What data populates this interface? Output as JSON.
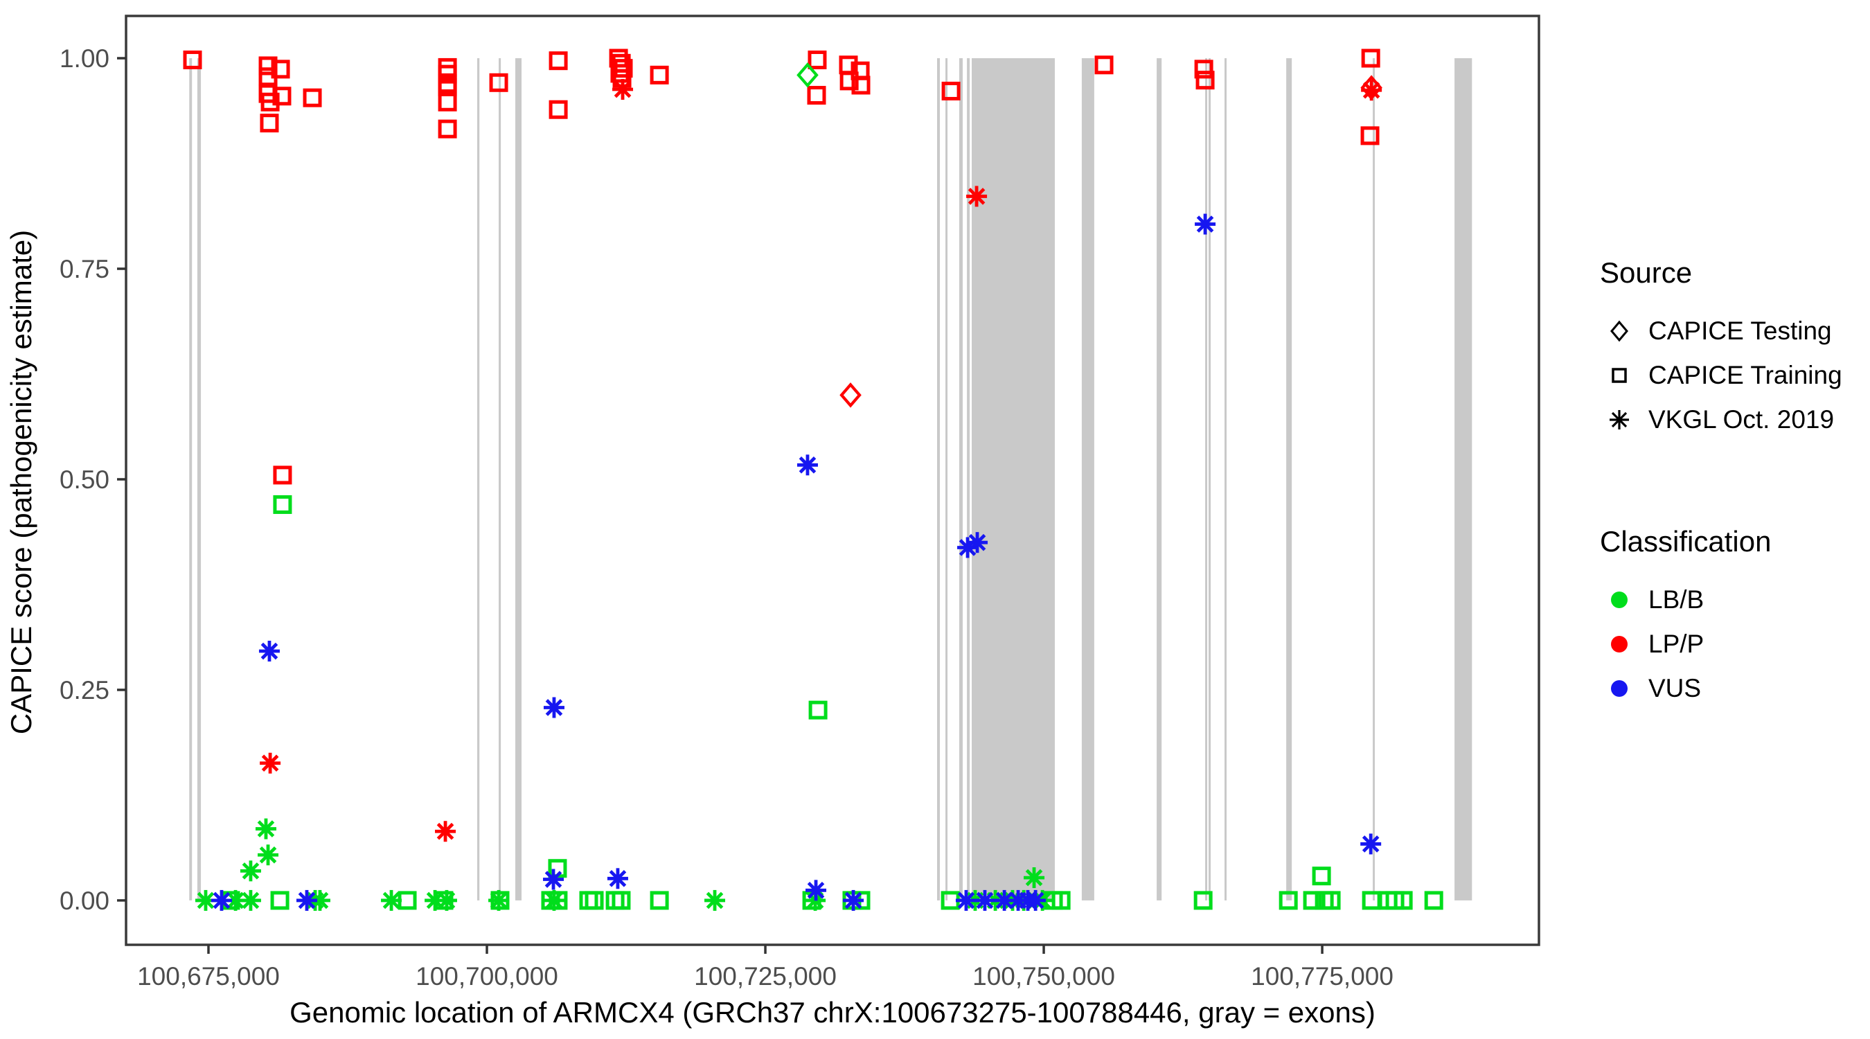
{
  "colors": {
    "LB/B": "#00DD1C",
    "LP/P": "#FF0000",
    "VUS": "#1717F0",
    "exon": "#C9C9C9",
    "axis_text": "#4D4D4D",
    "border": "#3A3A3A"
  },
  "legend": {
    "source": {
      "title": "Source",
      "items": [
        {
          "marker": "diamond",
          "label": "CAPICE Testing"
        },
        {
          "marker": "square",
          "label": "CAPICE Training"
        },
        {
          "marker": "asterisk",
          "label": "VKGL Oct. 2019"
        }
      ]
    },
    "classification": {
      "title": "Classification",
      "items": [
        {
          "color_key": "LB/B",
          "label": "LB/B"
        },
        {
          "color_key": "LP/P",
          "label": "LP/P"
        },
        {
          "color_key": "VUS",
          "label": "VUS"
        }
      ]
    }
  },
  "chart_data": {
    "type": "scatter",
    "title": "",
    "xlabel": "Genomic location of ARMCX4 (GRCh37 chrX:100673275-100788446, gray = exons)",
    "ylabel": "CAPICE score (pathogenicity estimate)",
    "xlim": [
      100667600,
      100794460
    ],
    "ylim": [
      -0.0527,
      1.0502
    ],
    "grid": false,
    "legend_position": "right",
    "x_ticks": [
      {
        "value": 100675000,
        "label": "100,675,000"
      },
      {
        "value": 100700000,
        "label": "100,700,000"
      },
      {
        "value": 100725000,
        "label": "100,725,000"
      },
      {
        "value": 100750000,
        "label": "100,750,000"
      },
      {
        "value": 100775000,
        "label": "100,775,000"
      }
    ],
    "y_ticks": [
      {
        "value": 1.0,
        "label": "1.00"
      },
      {
        "value": 0.75,
        "label": "0.75"
      },
      {
        "value": 0.5,
        "label": "0.50"
      },
      {
        "value": 0.25,
        "label": "0.25"
      },
      {
        "value": 0.0,
        "label": "0.00"
      }
    ],
    "exons_note": "gray rectangles span CAPICE score 0 to 1",
    "exons": [
      [
        100673275,
        100673520
      ],
      [
        100674000,
        100674320
      ],
      [
        100699130,
        100699330
      ],
      [
        100701060,
        100701250
      ],
      [
        100702550,
        100703110
      ],
      [
        100740420,
        100740670
      ],
      [
        100741170,
        100741310
      ],
      [
        100742410,
        100742720
      ],
      [
        100743100,
        100743350
      ],
      [
        100743530,
        100750990
      ],
      [
        100753410,
        100754530
      ],
      [
        100760140,
        100760580
      ],
      [
        100764490,
        100764630
      ],
      [
        100764800,
        100764940
      ],
      [
        100766230,
        100766370
      ],
      [
        100771770,
        100772270
      ],
      [
        100779540,
        100779680
      ],
      [
        100786880,
        100788446
      ]
    ],
    "series": [
      {
        "source": "CAPICE Training",
        "classification": "LP/P",
        "marker": "square",
        "color_key": "LP/P",
        "points": [
          [
            100673570,
            0.998
          ],
          [
            100680350,
            0.991
          ],
          [
            100681470,
            0.987
          ],
          [
            100680350,
            0.978
          ],
          [
            100680350,
            0.958
          ],
          [
            100681590,
            0.955
          ],
          [
            100684330,
            0.953
          ],
          [
            100680540,
            0.948
          ],
          [
            100680470,
            0.923
          ],
          [
            100681650,
            0.505
          ],
          [
            100696460,
            0.989
          ],
          [
            100696460,
            0.981
          ],
          [
            100696460,
            0.97
          ],
          [
            100696460,
            0.966
          ],
          [
            100696460,
            0.948
          ],
          [
            100696460,
            0.916
          ],
          [
            100701060,
            0.971
          ],
          [
            100706410,
            0.997
          ],
          [
            100706410,
            0.939
          ],
          [
            100711820,
            1.0
          ],
          [
            100712070,
            0.994
          ],
          [
            100712250,
            0.988
          ],
          [
            100711940,
            0.982
          ],
          [
            100712130,
            0.976
          ],
          [
            100715490,
            0.98
          ],
          [
            100729660,
            0.998
          ],
          [
            100729600,
            0.956
          ],
          [
            100732460,
            0.992
          ],
          [
            100732530,
            0.973
          ],
          [
            100733520,
            0.985
          ],
          [
            100733580,
            0.968
          ],
          [
            100741670,
            0.961
          ],
          [
            100755410,
            0.992
          ],
          [
            100764370,
            0.987
          ],
          [
            100764490,
            0.974
          ],
          [
            100779360,
            1.0
          ],
          [
            100779290,
            0.908
          ]
        ]
      },
      {
        "source": "CAPICE Testing",
        "classification": "LP/P",
        "marker": "diamond",
        "color_key": "LP/P",
        "points": [
          [
            100732650,
            0.6
          ],
          [
            100779420,
            0.965
          ]
        ]
      },
      {
        "source": "VKGL Oct. 2019",
        "classification": "LP/P",
        "marker": "asterisk",
        "color_key": "LP/P",
        "points": [
          [
            100712190,
            0.963
          ],
          [
            100743970,
            0.836
          ],
          [
            100779420,
            0.962
          ],
          [
            100680540,
            0.163
          ],
          [
            100696270,
            0.082
          ]
        ]
      },
      {
        "source": "CAPICE Testing",
        "classification": "LB/B",
        "marker": "diamond",
        "color_key": "LB/B",
        "points": [
          [
            100728790,
            0.98
          ]
        ]
      },
      {
        "source": "CAPICE Training",
        "classification": "LB/B",
        "marker": "square",
        "color_key": "LB/B",
        "points": [
          [
            100681650,
            0.47
          ],
          [
            100729730,
            0.226
          ],
          [
            100706340,
            0.038
          ],
          [
            100774940,
            0.029
          ],
          [
            100676990,
            0
          ],
          [
            100681410,
            0
          ],
          [
            100692850,
            0
          ],
          [
            100696140,
            0
          ],
          [
            100701180,
            0
          ],
          [
            100705720,
            0
          ],
          [
            100706400,
            0
          ],
          [
            100709140,
            0
          ],
          [
            100709640,
            0
          ],
          [
            100711510,
            0
          ],
          [
            100712060,
            0
          ],
          [
            100715490,
            0
          ],
          [
            100729170,
            0
          ],
          [
            100732770,
            0
          ],
          [
            100733580,
            0
          ],
          [
            100741610,
            0
          ],
          [
            100750870,
            0
          ],
          [
            100751560,
            0
          ],
          [
            100764310,
            0
          ],
          [
            100771960,
            0
          ],
          [
            100774130,
            0
          ],
          [
            100775190,
            0
          ],
          [
            100775810,
            0
          ],
          [
            100779420,
            0
          ],
          [
            100780910,
            0
          ],
          [
            100781530,
            0
          ],
          [
            100782280,
            0
          ],
          [
            100785020,
            0
          ]
        ]
      },
      {
        "source": "VKGL Oct. 2019",
        "classification": "LB/B",
        "marker": "asterisk",
        "color_key": "LB/B",
        "points": [
          [
            100680160,
            0.085
          ],
          [
            100680350,
            0.054
          ],
          [
            100678790,
            0.035
          ],
          [
            100749130,
            0.027
          ],
          [
            100674750,
            0
          ],
          [
            100677430,
            0
          ],
          [
            100678790,
            0
          ],
          [
            100684580,
            0
          ],
          [
            100685010,
            0
          ],
          [
            100691420,
            0
          ],
          [
            100695340,
            0
          ],
          [
            100696390,
            0
          ],
          [
            100701060,
            0
          ],
          [
            100706030,
            0
          ],
          [
            100720460,
            0
          ],
          [
            100729480,
            0
          ],
          [
            100743840,
            0
          ],
          [
            100745650,
            0
          ],
          [
            100747200,
            0
          ],
          [
            100748200,
            0
          ],
          [
            100749880,
            0
          ]
        ]
      },
      {
        "source": "VKGL Oct. 2019",
        "classification": "VUS",
        "marker": "asterisk",
        "color_key": "VUS",
        "points": [
          [
            100764490,
            0.803
          ],
          [
            100728790,
            0.517
          ],
          [
            100744030,
            0.425
          ],
          [
            100743160,
            0.419
          ],
          [
            100680470,
            0.296
          ],
          [
            100706030,
            0.229
          ],
          [
            100779360,
            0.067
          ],
          [
            100711750,
            0.026
          ],
          [
            100705970,
            0.025
          ],
          [
            100729540,
            0.012
          ],
          [
            100676180,
            0
          ],
          [
            100683830,
            0
          ],
          [
            100732900,
            0
          ],
          [
            100743030,
            0
          ],
          [
            100744710,
            0
          ],
          [
            100746460,
            0
          ],
          [
            100747700,
            0
          ],
          [
            100748570,
            0
          ],
          [
            100749260,
            0
          ]
        ]
      }
    ]
  }
}
